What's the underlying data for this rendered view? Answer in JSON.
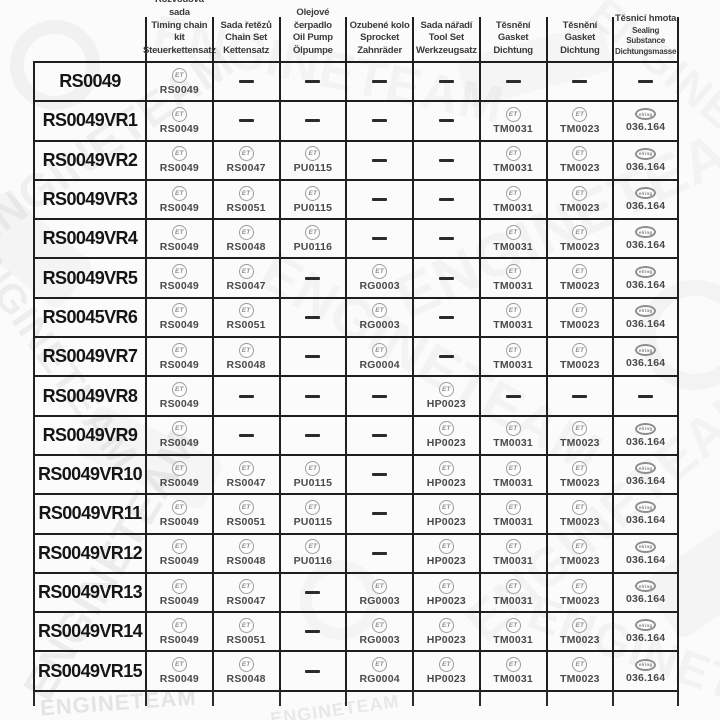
{
  "watermark": {
    "text": "ENGINETEAM"
  },
  "icons": {
    "et": "ET",
    "elring": "elring"
  },
  "dash_symbol": "—",
  "colors": {
    "line": "#1f1f1f",
    "row_label": "#151515",
    "part_number": "#4a4a4a",
    "header_text": "#3a3a3a",
    "icon_gray": "#9d9d9d",
    "background": "#fbfbfb"
  },
  "table": {
    "columns": [
      {
        "line1": "Rozvodová sada",
        "line2": "Timing chain kit",
        "line3": "Steuerkettensatz"
      },
      {
        "line1": "Sada řetězů",
        "line2": "Chain Set",
        "line3": "Kettensatz"
      },
      {
        "line1": "Olejové čerpadlo",
        "line2": "Oil Pump",
        "line3": "Ölpumpe"
      },
      {
        "line1": "Ozubené kolo",
        "line2": "Sprocket",
        "line3": "Zahnräder"
      },
      {
        "line1": "Sada nářadí",
        "line2": "Tool Set",
        "line3": "Werkzeugsatz"
      },
      {
        "line1": "Těsnění",
        "line2": "Gasket",
        "line3": "Dichtung"
      },
      {
        "line1": "Těsnění",
        "line2": "Gasket",
        "line3": "Dichtung"
      },
      {
        "line1": "Těsnicí hmota",
        "line2": "Sealing Substance",
        "line3": "Dichtungsmasse"
      }
    ],
    "rows": [
      {
        "label": "RS0049",
        "cells": [
          {
            "brand": "et",
            "value": "RS0049"
          },
          null,
          null,
          null,
          null,
          null,
          null,
          null
        ]
      },
      {
        "label": "RS0049VR1",
        "cells": [
          {
            "brand": "et",
            "value": "RS0049"
          },
          null,
          null,
          null,
          null,
          {
            "brand": "et",
            "value": "TM0031"
          },
          {
            "brand": "et",
            "value": "TM0023"
          },
          {
            "brand": "elring",
            "value": "036.164"
          }
        ]
      },
      {
        "label": "RS0049VR2",
        "cells": [
          {
            "brand": "et",
            "value": "RS0049"
          },
          {
            "brand": "et",
            "value": "RS0047"
          },
          {
            "brand": "et",
            "value": "PU0115"
          },
          null,
          null,
          {
            "brand": "et",
            "value": "TM0031"
          },
          {
            "brand": "et",
            "value": "TM0023"
          },
          {
            "brand": "elring",
            "value": "036.164"
          }
        ]
      },
      {
        "label": "RS0049VR3",
        "cells": [
          {
            "brand": "et",
            "value": "RS0049"
          },
          {
            "brand": "et",
            "value": "RS0051"
          },
          {
            "brand": "et",
            "value": "PU0115"
          },
          null,
          null,
          {
            "brand": "et",
            "value": "TM0031"
          },
          {
            "brand": "et",
            "value": "TM0023"
          },
          {
            "brand": "elring",
            "value": "036.164"
          }
        ]
      },
      {
        "label": "RS0049VR4",
        "cells": [
          {
            "brand": "et",
            "value": "RS0049"
          },
          {
            "brand": "et",
            "value": "RS0048"
          },
          {
            "brand": "et",
            "value": "PU0116"
          },
          null,
          null,
          {
            "brand": "et",
            "value": "TM0031"
          },
          {
            "brand": "et",
            "value": "TM0023"
          },
          {
            "brand": "elring",
            "value": "036.164"
          }
        ]
      },
      {
        "label": "RS0049VR5",
        "cells": [
          {
            "brand": "et",
            "value": "RS0049"
          },
          {
            "brand": "et",
            "value": "RS0047"
          },
          null,
          {
            "brand": "et",
            "value": "RG0003"
          },
          null,
          {
            "brand": "et",
            "value": "TM0031"
          },
          {
            "brand": "et",
            "value": "TM0023"
          },
          {
            "brand": "elring",
            "value": "036.164"
          }
        ]
      },
      {
        "label": "RS0045VR6",
        "cells": [
          {
            "brand": "et",
            "value": "RS0049"
          },
          {
            "brand": "et",
            "value": "RS0051"
          },
          null,
          {
            "brand": "et",
            "value": "RG0003"
          },
          null,
          {
            "brand": "et",
            "value": "TM0031"
          },
          {
            "brand": "et",
            "value": "TM0023"
          },
          {
            "brand": "elring",
            "value": "036.164"
          }
        ]
      },
      {
        "label": "RS0049VR7",
        "cells": [
          {
            "brand": "et",
            "value": "RS0049"
          },
          {
            "brand": "et",
            "value": "RS0048"
          },
          null,
          {
            "brand": "et",
            "value": "RG0004"
          },
          null,
          {
            "brand": "et",
            "value": "TM0031"
          },
          {
            "brand": "et",
            "value": "TM0023"
          },
          {
            "brand": "elring",
            "value": "036.164"
          }
        ]
      },
      {
        "label": "RS0049VR8",
        "cells": [
          {
            "brand": "et",
            "value": "RS0049"
          },
          null,
          null,
          null,
          {
            "brand": "et",
            "value": "HP0023"
          },
          null,
          null,
          null
        ]
      },
      {
        "label": "RS0049VR9",
        "cells": [
          {
            "brand": "et",
            "value": "RS0049"
          },
          null,
          null,
          null,
          {
            "brand": "et",
            "value": "HP0023"
          },
          {
            "brand": "et",
            "value": "TM0031"
          },
          {
            "brand": "et",
            "value": "TM0023"
          },
          {
            "brand": "elring",
            "value": "036.164"
          }
        ]
      },
      {
        "label": "RS0049VR10",
        "cells": [
          {
            "brand": "et",
            "value": "RS0049"
          },
          {
            "brand": "et",
            "value": "RS0047"
          },
          {
            "brand": "et",
            "value": "PU0115"
          },
          null,
          {
            "brand": "et",
            "value": "HP0023"
          },
          {
            "brand": "et",
            "value": "TM0031"
          },
          {
            "brand": "et",
            "value": "TM0023"
          },
          {
            "brand": "elring",
            "value": "036.164"
          }
        ]
      },
      {
        "label": "RS0049VR11",
        "cells": [
          {
            "brand": "et",
            "value": "RS0049"
          },
          {
            "brand": "et",
            "value": "RS0051"
          },
          {
            "brand": "et",
            "value": "PU0115"
          },
          null,
          {
            "brand": "et",
            "value": "HP0023"
          },
          {
            "brand": "et",
            "value": "TM0031"
          },
          {
            "brand": "et",
            "value": "TM0023"
          },
          {
            "brand": "elring",
            "value": "036.164"
          }
        ]
      },
      {
        "label": "RS0049VR12",
        "cells": [
          {
            "brand": "et",
            "value": "RS0049"
          },
          {
            "brand": "et",
            "value": "RS0048"
          },
          {
            "brand": "et",
            "value": "PU0116"
          },
          null,
          {
            "brand": "et",
            "value": "HP0023"
          },
          {
            "brand": "et",
            "value": "TM0031"
          },
          {
            "brand": "et",
            "value": "TM0023"
          },
          {
            "brand": "elring",
            "value": "036.164"
          }
        ]
      },
      {
        "label": "RS0049VR13",
        "cells": [
          {
            "brand": "et",
            "value": "RS0049"
          },
          {
            "brand": "et",
            "value": "RS0047"
          },
          null,
          {
            "brand": "et",
            "value": "RG0003"
          },
          {
            "brand": "et",
            "value": "HP0023"
          },
          {
            "brand": "et",
            "value": "TM0031"
          },
          {
            "brand": "et",
            "value": "TM0023"
          },
          {
            "brand": "elring",
            "value": "036.164"
          }
        ]
      },
      {
        "label": "RS0049VR14",
        "cells": [
          {
            "brand": "et",
            "value": "RS0049"
          },
          {
            "brand": "et",
            "value": "RS0051"
          },
          null,
          {
            "brand": "et",
            "value": "RG0003"
          },
          {
            "brand": "et",
            "value": "HP0023"
          },
          {
            "brand": "et",
            "value": "TM0031"
          },
          {
            "brand": "et",
            "value": "TM0023"
          },
          {
            "brand": "elring",
            "value": "036.164"
          }
        ]
      },
      {
        "label": "RS0049VR15",
        "cells": [
          {
            "brand": "et",
            "value": "RS0049"
          },
          {
            "brand": "et",
            "value": "RS0048"
          },
          null,
          {
            "brand": "et",
            "value": "RG0004"
          },
          {
            "brand": "et",
            "value": "HP0023"
          },
          {
            "brand": "et",
            "value": "TM0031"
          },
          {
            "brand": "et",
            "value": "TM0023"
          },
          {
            "brand": "elring",
            "value": "036.164"
          }
        ]
      }
    ]
  }
}
